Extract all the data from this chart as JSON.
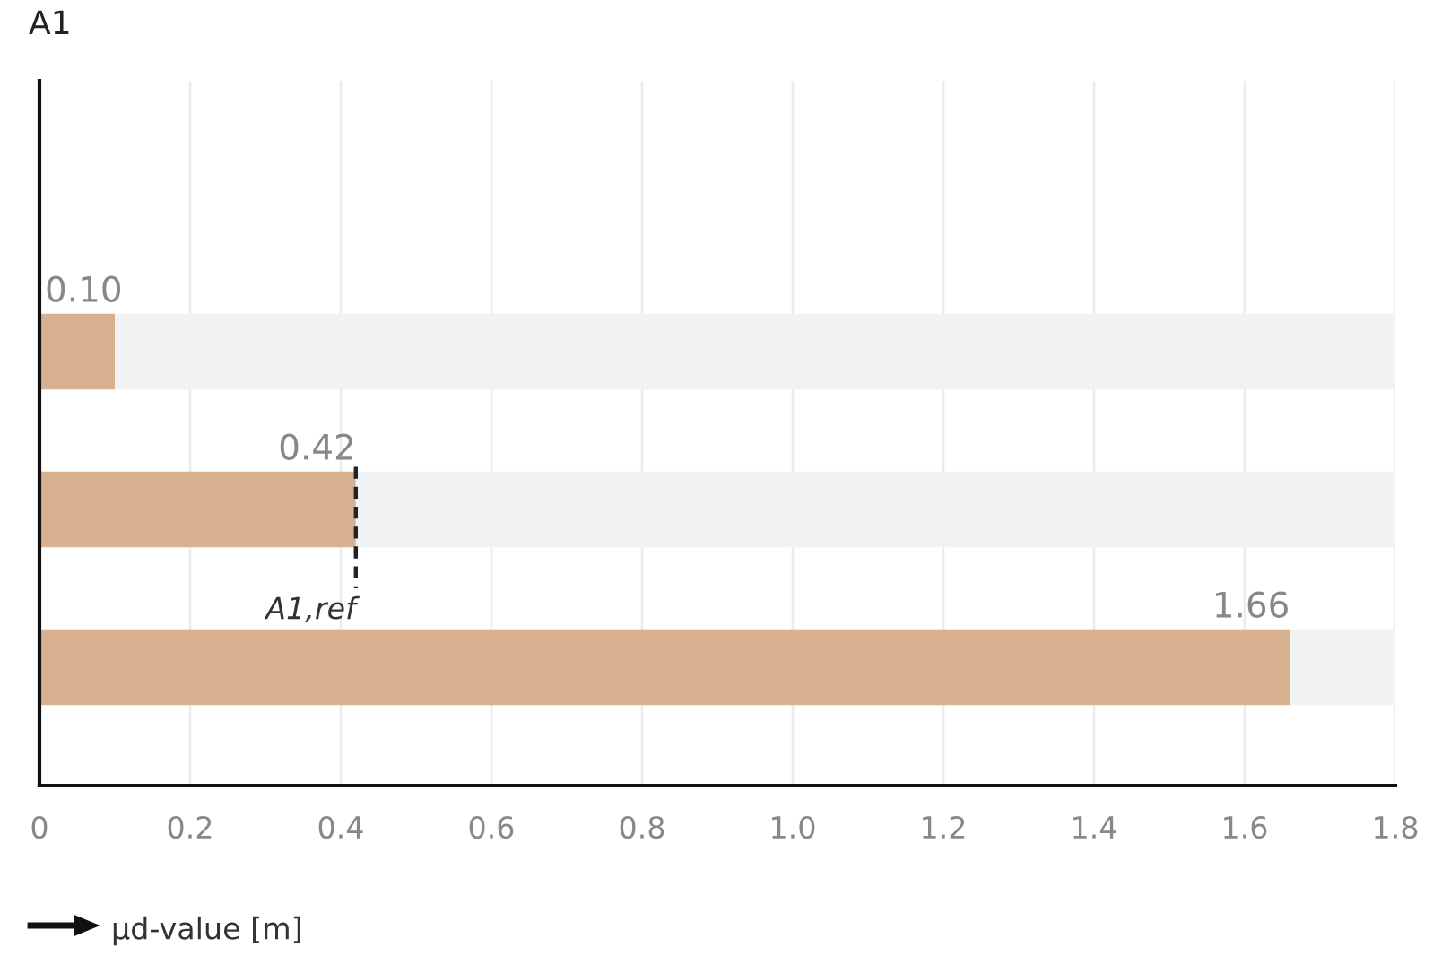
{
  "chart_data": {
    "type": "bar",
    "title": "A1",
    "xlabel": "µd-value [m]",
    "orientation": "horizontal",
    "stacked": true,
    "categories": [
      null,
      null,
      null
    ],
    "series": [
      {
        "color": "#d8b190",
        "values": [
          0.1,
          0.42,
          1.66
        ],
        "value_labels": [
          "0.10",
          "0.42",
          "1.66"
        ]
      },
      {
        "color": "#f1f2f4",
        "values": [
          1.7,
          1.38,
          0.14
        ]
      }
    ],
    "xlim": [
      0,
      1.8
    ],
    "xticks": [
      0,
      0.2,
      0.4,
      0.6,
      0.8,
      {
        "value": 1,
        "label": "1.0"
      },
      1.2,
      1.4,
      1.6,
      1.8
    ],
    "ref_lines": [
      {
        "axis": "x",
        "value": 0.42,
        "label": "A1,ref",
        "color": "#222222",
        "line_style": "dashed"
      }
    ],
    "grid": "x"
  }
}
